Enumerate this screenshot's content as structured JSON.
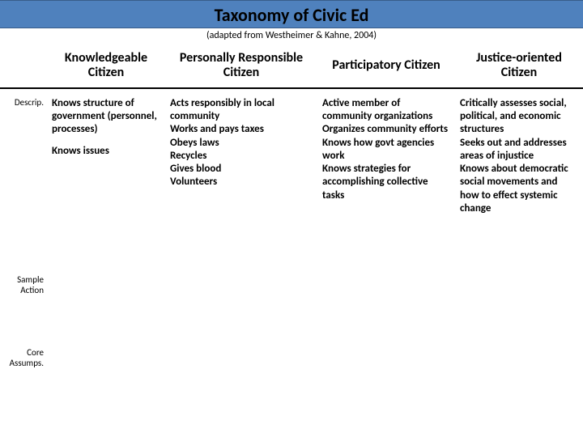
{
  "header": {
    "title": "Taxonomy of Civic Ed",
    "subtitle": "(adapted from Westheimer & Kahne, 2004)"
  },
  "columns": [
    {
      "label": "Knowledgeable Citizen"
    },
    {
      "label": "Personally Responsible Citizen"
    },
    {
      "label": "Participatory Citizen"
    },
    {
      "label": "Justice-oriented Citizen"
    }
  ],
  "rows": [
    {
      "label": "Descrip.",
      "cells": [
        "Knows structure of government (personnel, processes)\n\nKnows issues",
        "Acts responsibly in local community\nWorks and pays taxes\nObeys laws\nRecycles\nGives blood\nVolunteers",
        "Active member of community organizations\nOrganizes community efforts\nKnows how govt agencies work\nKnows strategies for accomplishing collective tasks",
        "Critically assesses social, political, and economic structures\nSeeks out and addresses areas of injustice\nKnows about democratic social movements and how to effect systemic change"
      ]
    },
    {
      "label": "Sample Action",
      "cells": [
        "",
        "",
        "",
        ""
      ]
    },
    {
      "label": "Core Assumps.",
      "cells": [
        "",
        "",
        "",
        ""
      ]
    }
  ],
  "style": {
    "band_bg": "#4f81bd",
    "band_border": "#385d8a",
    "divider": "#000000",
    "text": "#000000",
    "background": "#ffffff",
    "title_fontsize": 22,
    "colhead_fontsize": 16,
    "body_fontsize": 13,
    "rowhead_fontsize": 11
  }
}
